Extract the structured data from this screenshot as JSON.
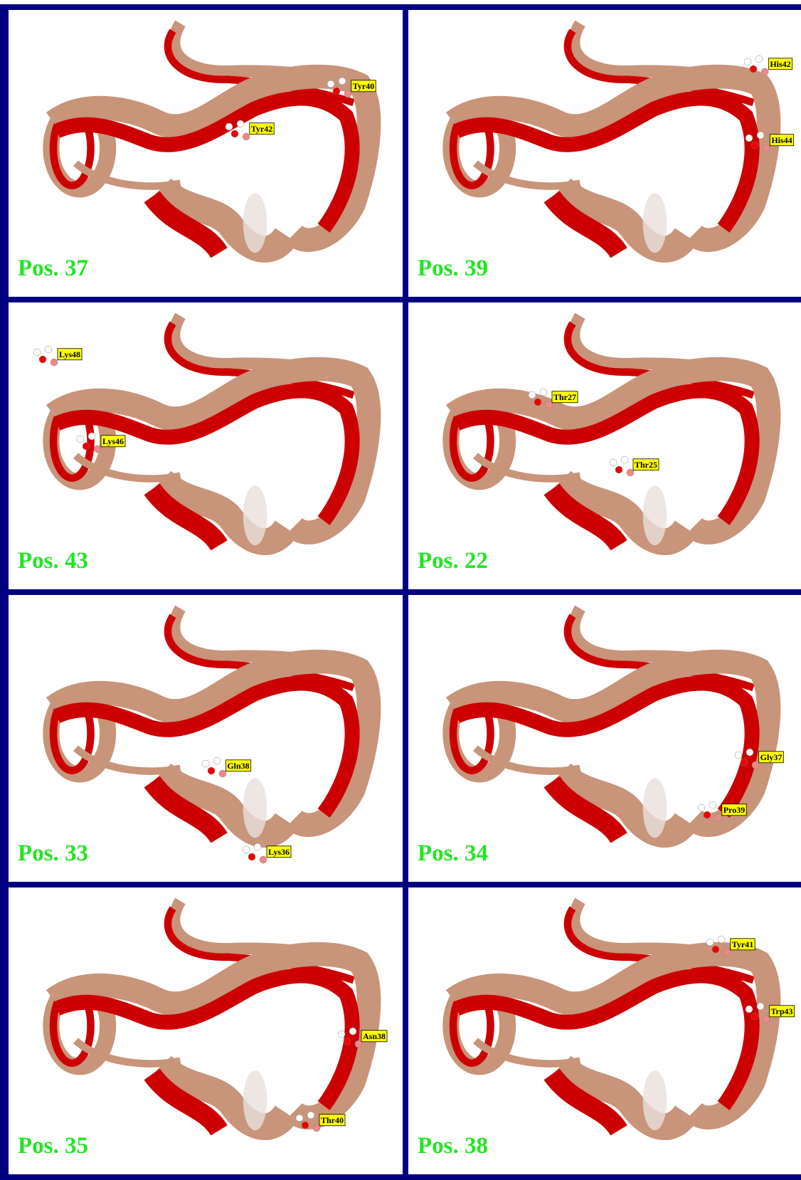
{
  "panels": [
    {
      "position": "Pos. 37",
      "residues": [
        "Tyr40",
        "Tyr42"
      ]
    },
    {
      "position": "Pos. 39",
      "residues": [
        "His42",
        "His44"
      ]
    },
    {
      "position": "Pos. 43",
      "residues": [
        "Lys48",
        "Lys46"
      ]
    },
    {
      "position": "Pos. 22",
      "residues": [
        "Thr27",
        "Thr25"
      ]
    },
    {
      "position": "Pos. 33",
      "residues": [
        "Gln38",
        "Lys36"
      ]
    },
    {
      "position": "Pos. 34",
      "residues": [
        "Gly37",
        "Pro39"
      ]
    },
    {
      "position": "Pos. 35",
      "residues": [
        "Asn38",
        "Thr40"
      ]
    },
    {
      "position": "Pos. 38",
      "residues": [
        "Tyr41",
        "Trp43"
      ]
    }
  ]
}
